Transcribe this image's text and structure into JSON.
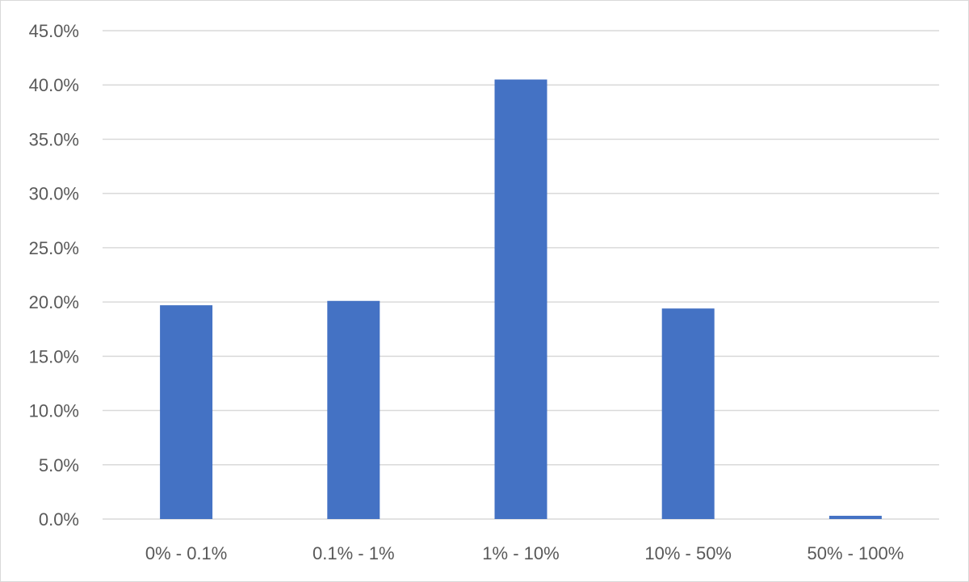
{
  "chart_data": {
    "type": "bar",
    "title": "",
    "xlabel": "",
    "ylabel": "",
    "categories": [
      "0% - 0.1%",
      "0.1% - 1%",
      "1% - 10%",
      "10% - 50%",
      "50% - 100%"
    ],
    "values": [
      19.7,
      20.1,
      40.5,
      19.4,
      0.3
    ],
    "ylim": [
      0,
      45
    ],
    "yticks": [
      0,
      5,
      10,
      15,
      20,
      25,
      30,
      35,
      40,
      45
    ],
    "ytick_labels": [
      "0.0%",
      "5.0%",
      "10.0%",
      "15.0%",
      "20.0%",
      "25.0%",
      "30.0%",
      "35.0%",
      "40.0%",
      "45.0%"
    ],
    "grid": true,
    "legend": "none",
    "bar_color": "#4472c4",
    "grid_color": "#d9d9d9",
    "text_color": "#595959"
  }
}
